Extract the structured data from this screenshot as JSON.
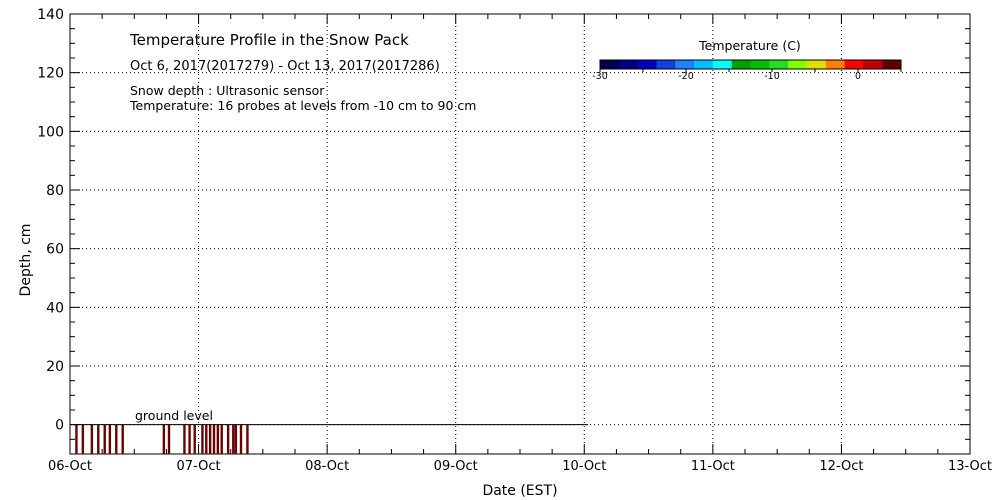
{
  "chart_data": {
    "type": "heatmap",
    "title": "Temperature Profile in the Snow Pack",
    "subtitle": "Oct  6, 2017(2017279) - Oct 13, 2017(2017286)",
    "annotations": [
      "Snow depth : Ultrasonic sensor",
      "Temperature: 16 probes at levels from -10 cm to 90 cm",
      "ground level"
    ],
    "xlabel": "Date (EST)",
    "ylabel": "Depth, cm",
    "x_ticks": [
      "06-Oct",
      "07-Oct",
      "08-Oct",
      "09-Oct",
      "10-Oct",
      "11-Oct",
      "12-Oct",
      "13-Oct"
    ],
    "xlim_days": [
      0,
      7
    ],
    "ylim": [
      -10,
      140
    ],
    "y_ticks": [
      0,
      20,
      40,
      60,
      80,
      100,
      120,
      140
    ],
    "grid": true,
    "ground_level_cm": 0,
    "ground_line_x_end_days": 4.03,
    "colorbar": {
      "title": "Temperature (C)",
      "range": [
        -30,
        5
      ],
      "ticks": [
        -30,
        -20,
        -10,
        0
      ],
      "colors": [
        "#000050",
        "#000080",
        "#0000c0",
        "#1040e0",
        "#2080ff",
        "#00c0ff",
        "#00ffff",
        "#00a000",
        "#00c000",
        "#20e020",
        "#80ff00",
        "#e0e000",
        "#ff8000",
        "#ff0000",
        "#c00000",
        "#600000"
      ]
    },
    "ground_temp_columns_days": [
      0.05,
      0.1,
      0.17,
      0.22,
      0.27,
      0.31,
      0.36,
      0.41,
      0.73,
      0.77,
      0.89,
      0.93,
      0.97,
      1.03,
      1.06,
      1.09,
      1.12,
      1.15,
      1.18,
      1.23,
      1.27,
      1.29,
      1.33,
      1.38
    ],
    "ground_temp_color": "#6a0000"
  }
}
